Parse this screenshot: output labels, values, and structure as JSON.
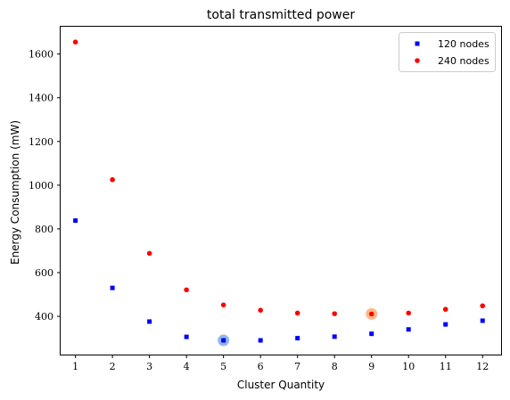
{
  "chart_data": {
    "type": "scatter",
    "title": "total transmitted power",
    "xlabel": "Cluster Quantity",
    "ylabel": "Energy Consumption (mW)",
    "x": [
      1,
      2,
      3,
      4,
      5,
      6,
      7,
      8,
      9,
      10,
      11,
      12
    ],
    "xticks": [
      1,
      2,
      3,
      4,
      5,
      6,
      7,
      8,
      9,
      10,
      11,
      12
    ],
    "yticks": [
      400,
      600,
      800,
      1000,
      1200,
      1400,
      1600
    ],
    "xlim": [
      0.6,
      12.5
    ],
    "ylim": [
      225,
      1725
    ],
    "grid": false,
    "legend_position": "top-right",
    "series": [
      {
        "name": "120 nodes",
        "marker": "square",
        "color": "#0000ff",
        "values": [
          838,
          530,
          376,
          306,
          290,
          290,
          300,
          307,
          320,
          340,
          363,
          380
        ]
      },
      {
        "name": "240 nodes",
        "marker": "circle",
        "color": "#ff0000",
        "values": [
          1655,
          1025,
          688,
          521,
          452,
          428,
          415,
          412,
          411,
          415,
          432,
          448
        ]
      }
    ],
    "highlights": [
      {
        "series": "120 nodes",
        "x": 5,
        "value": 290,
        "color": "#6fa0e0"
      },
      {
        "series": "240 nodes",
        "x": 9,
        "value": 411,
        "color": "#ffa060"
      }
    ]
  }
}
